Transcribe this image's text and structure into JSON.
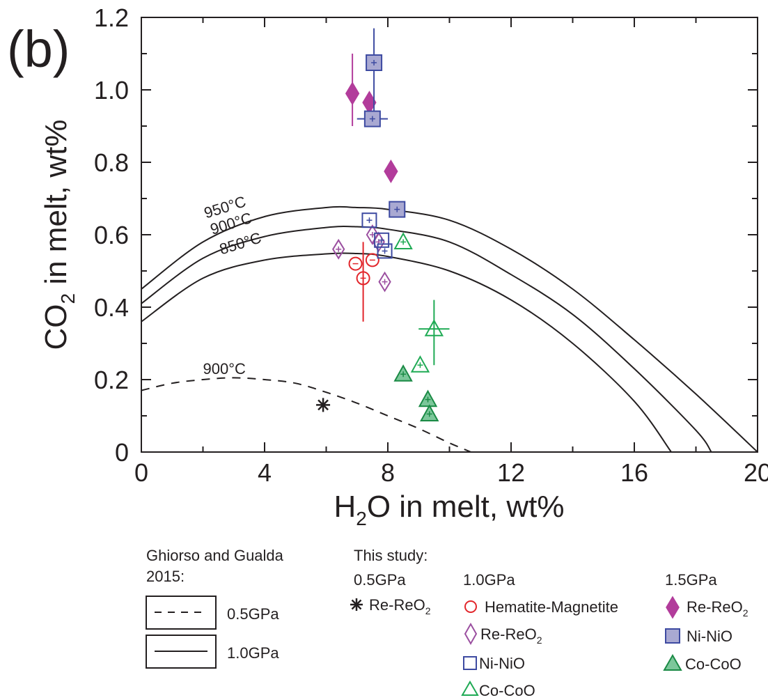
{
  "panel_label": "(b)",
  "chart_data": {
    "type": "scatter",
    "xlabel": "H₂O in melt, wt%",
    "ylabel": "CO₂ in melt, wt%",
    "xlim": [
      0,
      20
    ],
    "ylim": [
      0,
      1.2
    ],
    "xticks": [
      0,
      4,
      8,
      12,
      16,
      20
    ],
    "xtick_labels": [
      "0",
      "4",
      "8",
      "12",
      "16",
      "20"
    ],
    "yticks": [
      0,
      0.2,
      0.4,
      0.6,
      0.8,
      1.0,
      1.2
    ],
    "ytick_labels": [
      "0",
      "0.2",
      "0.4",
      "0.6",
      "0.8",
      "1.0",
      "1.2"
    ],
    "grid": false,
    "model_curves": [
      {
        "label": "950°C",
        "pressure": "1.0GPa",
        "style": "solid",
        "x": [
          0,
          2,
          4,
          6,
          7,
          8,
          10,
          12,
          14,
          16,
          18,
          20
        ],
        "y": [
          0.45,
          0.58,
          0.65,
          0.675,
          0.675,
          0.67,
          0.64,
          0.56,
          0.45,
          0.31,
          0.16,
          0.0
        ]
      },
      {
        "label": "900°C",
        "pressure": "1.0GPa",
        "style": "solid",
        "x": [
          0,
          2,
          4,
          6,
          7,
          8,
          10,
          12,
          14,
          16,
          18,
          18.5
        ],
        "y": [
          0.41,
          0.535,
          0.595,
          0.62,
          0.622,
          0.615,
          0.58,
          0.49,
          0.38,
          0.23,
          0.06,
          0.0
        ]
      },
      {
        "label": "850°C",
        "pressure": "1.0GPa",
        "style": "solid",
        "x": [
          0,
          2,
          4,
          6,
          7,
          8,
          10,
          12,
          14,
          16,
          17.2
        ],
        "y": [
          0.36,
          0.48,
          0.53,
          0.547,
          0.548,
          0.54,
          0.5,
          0.42,
          0.3,
          0.14,
          0.0
        ]
      },
      {
        "label": "900°C",
        "pressure": "0.5GPa",
        "style": "dashed",
        "x": [
          0,
          1,
          2,
          3,
          4,
          5,
          6,
          7,
          8,
          9,
          10,
          10.7
        ],
        "y": [
          0.17,
          0.19,
          0.2,
          0.205,
          0.2,
          0.19,
          0.165,
          0.135,
          0.1,
          0.065,
          0.025,
          0.0
        ]
      }
    ],
    "series": [
      {
        "name": "Re-ReO₂",
        "pressure": "0.5GPa",
        "marker": "asterisk",
        "filled": false,
        "color": "#231f20",
        "points": [
          {
            "x": 5.9,
            "y": 0.13
          }
        ]
      },
      {
        "name": "Hematite-Magnetite",
        "pressure": "1.0GPa",
        "marker": "circle",
        "filled": false,
        "color": "#e2262b",
        "points": [
          {
            "x": 7.2,
            "y": 0.48,
            "yerr": [
              0.36,
              0.58
            ]
          },
          {
            "x": 6.95,
            "y": 0.52
          },
          {
            "x": 7.5,
            "y": 0.53
          }
        ]
      },
      {
        "name": "Re-ReO₂",
        "pressure": "1.0GPa",
        "marker": "diamond",
        "filled": false,
        "color": "#9b4fa0",
        "points": [
          {
            "x": 6.4,
            "y": 0.56
          },
          {
            "x": 7.5,
            "y": 0.6
          },
          {
            "x": 7.7,
            "y": 0.58
          },
          {
            "x": 7.9,
            "y": 0.47
          }
        ]
      },
      {
        "name": "Ni-NiO",
        "pressure": "1.0GPa",
        "marker": "square",
        "filled": false,
        "color": "#3d4aa1",
        "points": [
          {
            "x": 7.4,
            "y": 0.64
          },
          {
            "x": 7.8,
            "y": 0.585
          },
          {
            "x": 7.9,
            "y": 0.555
          }
        ]
      },
      {
        "name": "Co-CoO",
        "pressure": "1.0GPa",
        "marker": "triangle",
        "filled": false,
        "color": "#1faa54",
        "points": [
          {
            "x": 8.5,
            "y": 0.58
          },
          {
            "x": 9.05,
            "y": 0.24
          },
          {
            "x": 9.5,
            "y": 0.34,
            "yerr": [
              0.24,
              0.42
            ],
            "xerr": [
              9.0,
              10.0
            ]
          }
        ]
      },
      {
        "name": "Re-ReO₂",
        "pressure": "1.5GPa",
        "marker": "diamond",
        "filled": true,
        "color": "#b23c9b",
        "points": [
          {
            "x": 6.85,
            "y": 0.99,
            "yerr": [
              0.9,
              1.1
            ]
          },
          {
            "x": 7.4,
            "y": 0.965
          },
          {
            "x": 8.1,
            "y": 0.775
          }
        ]
      },
      {
        "name": "Ni-NiO",
        "pressure": "1.5GPa",
        "marker": "square",
        "filled": true,
        "color": "#3d4aa1",
        "fill": "#a9a9d2",
        "points": [
          {
            "x": 7.55,
            "y": 1.075,
            "yerr": [
              0.91,
              1.17
            ]
          },
          {
            "x": 7.5,
            "y": 0.92,
            "xerr": [
              7.0,
              8.0
            ]
          },
          {
            "x": 8.3,
            "y": 0.67
          }
        ]
      },
      {
        "name": "Co-CoO",
        "pressure": "1.5GPa",
        "marker": "triangle",
        "filled": true,
        "color": "#1a8a45",
        "fill": "#7cc79a",
        "points": [
          {
            "x": 8.5,
            "y": 0.215
          },
          {
            "x": 9.3,
            "y": 0.145
          },
          {
            "x": 9.35,
            "y": 0.105
          }
        ]
      }
    ]
  },
  "legend": {
    "model_title_line1": "Ghiorso and Gualda",
    "model_title_line2": "2015:",
    "model_dashed_label": "0.5GPa",
    "model_solid_label": "1.0GPa",
    "study_title": "This study:",
    "p05_header": "0.5GPa",
    "p10_header": "1.0GPa",
    "p15_header": "1.5GPa",
    "p05_rereo2": "Re-ReO",
    "p10_hm": "Hematite-Magnetite",
    "p10_rereo2": "Re-ReO",
    "p10_ninio": "Ni-NiO",
    "p10_cocoo": "Co-CoO",
    "p15_rereo2": "Re-ReO",
    "p15_ninio": "Ni-NiO",
    "p15_cocoo": "Co-CoO",
    "subscript_2": "2"
  },
  "axis_text": {
    "x_main_a": "H",
    "x_sub": "2",
    "x_main_b": "O in melt, wt%",
    "y_main_a": "CO",
    "y_sub": "2",
    "y_main_b": " in melt, wt%"
  },
  "colors": {
    "axis": "#231f20",
    "red": "#e2262b",
    "purple_open": "#9b4fa0",
    "purple_filled": "#b23c9b",
    "blue": "#3d4aa1",
    "blue_fill": "#a9a9d2",
    "green": "#1faa54",
    "green_fill": "#7cc79a"
  }
}
